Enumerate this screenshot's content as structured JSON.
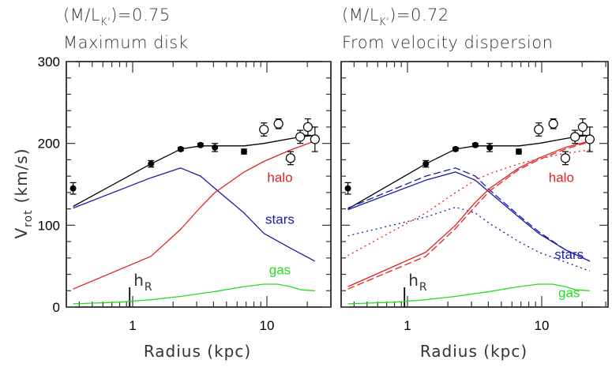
{
  "chart_data": [
    {
      "type": "line",
      "panel": "left",
      "title_line1_prefix": "(M/L",
      "title_line1_sub": "K'",
      "title_line1_suffix": ")=0.75",
      "title_line2": "Maximum disk",
      "xlabel": "Radius (kpc)",
      "ylabel_main": "V",
      "ylabel_sub": "rot",
      "ylabel_units": "(km/s)",
      "xscale": "log",
      "xlim": [
        0.32,
        30
      ],
      "ylim": [
        0,
        300
      ],
      "xticks": [
        {
          "value": 1,
          "label": "1"
        },
        {
          "value": 10,
          "label": "10"
        }
      ],
      "yticks": [
        {
          "value": 0,
          "label": "0"
        },
        {
          "value": 100,
          "label": "100"
        },
        {
          "value": 200,
          "label": "200"
        },
        {
          "value": 300,
          "label": "300"
        }
      ],
      "hR": {
        "label": "h",
        "sub": "R",
        "value": 0.95
      },
      "observed_filled": [
        {
          "r": 0.36,
          "v": 145,
          "err": 7
        },
        {
          "r": 1.37,
          "v": 175,
          "err": 4
        },
        {
          "r": 2.28,
          "v": 193,
          "err": 2
        },
        {
          "r": 3.2,
          "v": 198,
          "err": 2
        },
        {
          "r": 4.1,
          "v": 195,
          "err": 5
        },
        {
          "r": 6.75,
          "v": 190,
          "err": 3
        }
      ],
      "observed_open": [
        {
          "r": 9.5,
          "v": 217,
          "err": 8
        },
        {
          "r": 12.2,
          "v": 224,
          "err": 6
        },
        {
          "r": 15.0,
          "v": 182,
          "err": 8
        },
        {
          "r": 17.7,
          "v": 208,
          "err": 8
        },
        {
          "r": 20.2,
          "v": 220,
          "err": 10
        },
        {
          "r": 22.8,
          "v": 205,
          "err": 15
        }
      ],
      "series": [
        {
          "name": "total",
          "color": "#000000",
          "style": "solid",
          "points": [
            [
              0.36,
              123
            ],
            [
              1.37,
              175
            ],
            [
              2.28,
              193
            ],
            [
              3.2,
              197
            ],
            [
              4.1,
              197
            ],
            [
              6.75,
              197
            ],
            [
              9.5,
              200
            ],
            [
              17.7,
              208
            ],
            [
              22.8,
              210
            ]
          ]
        },
        {
          "name": "stars",
          "label": "stars",
          "color": "#1a1aaa",
          "style": "solid",
          "points": [
            [
              0.36,
              121
            ],
            [
              1.37,
              158
            ],
            [
              2.28,
              170
            ],
            [
              3.2,
              160
            ],
            [
              4.1,
              145
            ],
            [
              6.75,
              115
            ],
            [
              9.5,
              90
            ],
            [
              15,
              72
            ],
            [
              22.8,
              56
            ]
          ]
        },
        {
          "name": "halo",
          "label": "halo",
          "color": "#dd2222",
          "style": "solid",
          "points": [
            [
              0.36,
              22
            ],
            [
              1.37,
              62
            ],
            [
              2.28,
              95
            ],
            [
              3.2,
              122
            ],
            [
              4.1,
              140
            ],
            [
              6.75,
              165
            ],
            [
              9.5,
              178
            ],
            [
              15,
              192
            ],
            [
              22.8,
              203
            ]
          ]
        },
        {
          "name": "gas",
          "label": "gas",
          "color": "#22dd22",
          "style": "solid",
          "points": [
            [
              0.36,
              4
            ],
            [
              0.8,
              6
            ],
            [
              1.37,
              9
            ],
            [
              2.28,
              13
            ],
            [
              4.1,
              19
            ],
            [
              6.75,
              25
            ],
            [
              9.5,
              28
            ],
            [
              12,
              28
            ],
            [
              15,
              25
            ],
            [
              18,
              21
            ],
            [
              22.8,
              20
            ]
          ]
        }
      ],
      "labels": [
        {
          "text": "halo",
          "color": "#dd2222",
          "r": 12.5,
          "v": 153
        },
        {
          "text": "stars",
          "color": "#1a1aaa",
          "r": 12.5,
          "v": 102
        },
        {
          "text": "gas",
          "color": "#22dd22",
          "r": 12.5,
          "v": 40
        }
      ]
    },
    {
      "type": "line",
      "panel": "right",
      "title_line1_prefix": "(M/L",
      "title_line1_sub": "K'",
      "title_line1_suffix": ")=0.72",
      "title_line2": "From velocity dispersion",
      "xlabel": "Radius (kpc)",
      "xscale": "log",
      "xlim": [
        0.32,
        30
      ],
      "ylim": [
        0,
        300
      ],
      "xticks": [
        {
          "value": 1,
          "label": "1"
        },
        {
          "value": 10,
          "label": "10"
        }
      ],
      "hR": {
        "label": "h",
        "sub": "R",
        "value": 0.95
      },
      "observed_filled": [
        {
          "r": 0.36,
          "v": 145,
          "err": 7
        },
        {
          "r": 1.37,
          "v": 175,
          "err": 4
        },
        {
          "r": 2.28,
          "v": 193,
          "err": 2
        },
        {
          "r": 3.2,
          "v": 198,
          "err": 2
        },
        {
          "r": 4.1,
          "v": 195,
          "err": 5
        },
        {
          "r": 6.75,
          "v": 190,
          "err": 3
        }
      ],
      "observed_open": [
        {
          "r": 9.5,
          "v": 217,
          "err": 8
        },
        {
          "r": 12.2,
          "v": 224,
          "err": 6
        },
        {
          "r": 15.0,
          "v": 182,
          "err": 8
        },
        {
          "r": 17.7,
          "v": 208,
          "err": 8
        },
        {
          "r": 20.2,
          "v": 220,
          "err": 10
        },
        {
          "r": 22.8,
          "v": 205,
          "err": 15
        }
      ],
      "series": [
        {
          "name": "total",
          "color": "#000000",
          "style": "solid",
          "points": [
            [
              0.36,
              120
            ],
            [
              1.37,
              175
            ],
            [
              2.28,
              193
            ],
            [
              3.2,
              197
            ],
            [
              4.1,
              197
            ],
            [
              6.75,
              197
            ],
            [
              9.5,
              200
            ],
            [
              17.7,
              208
            ],
            [
              22.8,
              210
            ]
          ]
        },
        {
          "name": "stars",
          "label": "stars",
          "color": "#1a1aaa",
          "style": "solid",
          "points": [
            [
              0.36,
              119
            ],
            [
              1.37,
              155
            ],
            [
              2.28,
              165
            ],
            [
              3.2,
              155
            ],
            [
              4.1,
              140
            ],
            [
              6.75,
              110
            ],
            [
              9.5,
              90
            ],
            [
              15,
              70
            ],
            [
              22.8,
              56
            ]
          ]
        },
        {
          "name": "stars-dashed",
          "color": "#1a1aaa",
          "style": "dashed",
          "points": [
            [
              0.36,
              121
            ],
            [
              1.37,
              160
            ],
            [
              2.28,
              170
            ],
            [
              3.2,
              160
            ],
            [
              4.1,
              143
            ],
            [
              6.75,
              112
            ],
            [
              9.5,
              92
            ],
            [
              15,
              70
            ],
            [
              22.8,
              56
            ]
          ]
        },
        {
          "name": "stars-dotted",
          "color": "#1a1aaa",
          "style": "dotted",
          "points": [
            [
              0.36,
              87
            ],
            [
              1.37,
              110
            ],
            [
              2.28,
              122
            ],
            [
              3.2,
              115
            ],
            [
              4.1,
              102
            ],
            [
              6.75,
              80
            ],
            [
              9.5,
              67
            ],
            [
              15,
              55
            ],
            [
              22.8,
              44
            ]
          ]
        },
        {
          "name": "halo",
          "label": "halo",
          "color": "#dd2222",
          "style": "solid",
          "points": [
            [
              0.36,
              25
            ],
            [
              1.37,
              67
            ],
            [
              2.28,
              100
            ],
            [
              3.2,
              128
            ],
            [
              4.1,
              145
            ],
            [
              6.75,
              170
            ],
            [
              9.5,
              182
            ],
            [
              15,
              195
            ],
            [
              22.8,
              203
            ]
          ]
        },
        {
          "name": "halo-dashed",
          "color": "#dd2222",
          "style": "dashed",
          "points": [
            [
              0.36,
              22
            ],
            [
              1.37,
              62
            ],
            [
              2.28,
              96
            ],
            [
              3.2,
              123
            ],
            [
              4.1,
              142
            ],
            [
              6.75,
              168
            ],
            [
              9.5,
              180
            ],
            [
              15,
              193
            ],
            [
              22.8,
              202
            ]
          ]
        },
        {
          "name": "halo-dotted",
          "color": "#dd2222",
          "style": "dotted",
          "points": [
            [
              0.36,
              63
            ],
            [
              1.37,
              115
            ],
            [
              2.28,
              140
            ],
            [
              3.2,
              155
            ],
            [
              4.1,
              163
            ],
            [
              6.75,
              175
            ],
            [
              9.5,
              181
            ],
            [
              15,
              188
            ],
            [
              22.8,
              192
            ]
          ]
        },
        {
          "name": "gas",
          "label": "gas",
          "color": "#22dd22",
          "style": "solid",
          "points": [
            [
              0.36,
              4
            ],
            [
              0.8,
              6
            ],
            [
              1.37,
              9
            ],
            [
              2.28,
              13
            ],
            [
              4.1,
              19
            ],
            [
              6.75,
              25
            ],
            [
              9.5,
              28
            ],
            [
              12,
              28
            ],
            [
              15,
              25
            ],
            [
              18,
              21
            ],
            [
              22.8,
              20
            ]
          ]
        }
      ],
      "labels": [
        {
          "text": "halo",
          "color": "#dd2222",
          "r": 14,
          "v": 153
        },
        {
          "text": "stars",
          "color": "#1a1aaa",
          "r": 16,
          "v": 59
        },
        {
          "text": "gas",
          "color": "#22dd22",
          "r": 16,
          "v": 12
        }
      ]
    }
  ]
}
